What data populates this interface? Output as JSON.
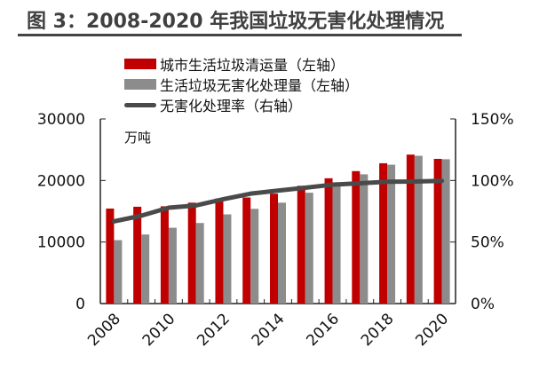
{
  "title": "图 3：2008-2020 年我国垃圾无害化处理情况",
  "chart_data": {
    "type": "bar",
    "title": "图 3：2008-2020 年我国垃圾无害化处理情况",
    "unit_label": "万吨",
    "categories": [
      "2008",
      "2009",
      "2010",
      "2011",
      "2012",
      "2013",
      "2014",
      "2015",
      "2016",
      "2017",
      "2018",
      "2019",
      "2020"
    ],
    "x_tick_labels": [
      "2008",
      "2010",
      "2012",
      "2014",
      "2016",
      "2018",
      "2020"
    ],
    "series": [
      {
        "name": "城市生活垃圾清运量（左轴）",
        "type": "bar",
        "axis": "left",
        "color": "#c00000",
        "values": [
          15438,
          15734,
          15805,
          16395,
          17081,
          17239,
          17860,
          19142,
          20362,
          21521,
          22802,
          24206,
          23512
        ]
      },
      {
        "name": "生活垃圾无害化处理量（左轴）",
        "type": "bar",
        "axis": "left",
        "color": "#8c8c8c",
        "values": [
          10307,
          11220,
          12318,
          13090,
          14490,
          15394,
          16394,
          18013,
          19674,
          20999,
          22565,
          24013,
          23452
        ]
      },
      {
        "name": "无害化处理率（右轴）",
        "type": "line",
        "axis": "right",
        "color": "#4a4a4a",
        "values": [
          66.8,
          71.4,
          77.9,
          79.7,
          84.8,
          89.3,
          91.8,
          94.1,
          96.6,
          97.7,
          99.0,
          99.2,
          99.7
        ]
      }
    ],
    "left_axis": {
      "ylim": [
        0,
        30000
      ],
      "ticks": [
        "0",
        "10000",
        "20000",
        "30000"
      ]
    },
    "right_axis": {
      "ylim": [
        0,
        150
      ],
      "ticks": [
        "0%",
        "50%",
        "100%",
        "150%"
      ]
    },
    "legend_placement": "top-center",
    "grid": false
  }
}
